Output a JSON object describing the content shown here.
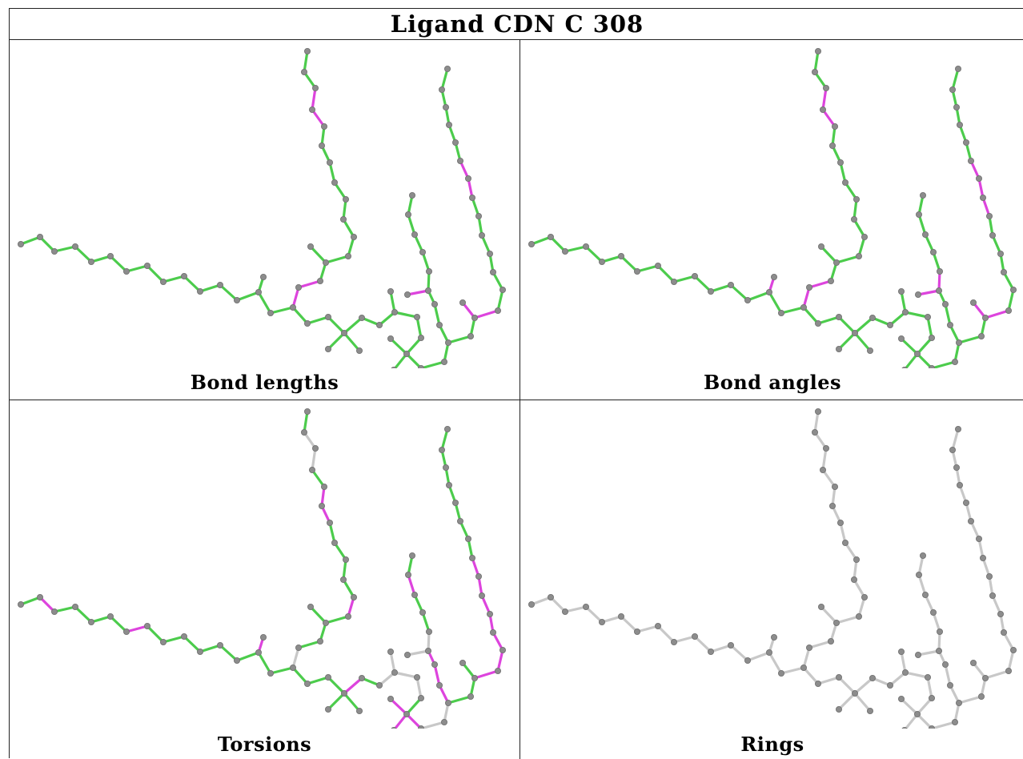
{
  "title": "Ligand CDN C 308",
  "colors": {
    "ok": "#4ccc4c",
    "outlier": "#dd44dd",
    "neutral": "#c8c8c8",
    "atom": "#8c8c8c"
  },
  "panels": [
    {
      "caption": "Bond lengths",
      "highlight": [
        19,
        20,
        31,
        32,
        52,
        60,
        61,
        68,
        69
      ],
      "neutral_from": 999
    },
    {
      "caption": "Bond angles",
      "highlight": [
        18,
        19,
        20,
        31,
        32,
        52,
        53,
        60,
        61,
        67,
        68,
        69
      ],
      "neutral_from": 999
    },
    {
      "caption": "Torsions",
      "highlight": [
        1,
        6,
        18,
        24,
        29,
        30,
        37,
        44,
        45,
        46,
        49,
        50,
        51,
        56,
        61,
        62,
        63,
        64,
        65,
        66,
        67
      ],
      "neutral": [
        19,
        32,
        33,
        39,
        40,
        41,
        42,
        47,
        48,
        52,
        53
      ],
      "neutral_from": 999
    },
    {
      "caption": "Rings",
      "highlight": [],
      "neutral_from": 0
    }
  ]
}
